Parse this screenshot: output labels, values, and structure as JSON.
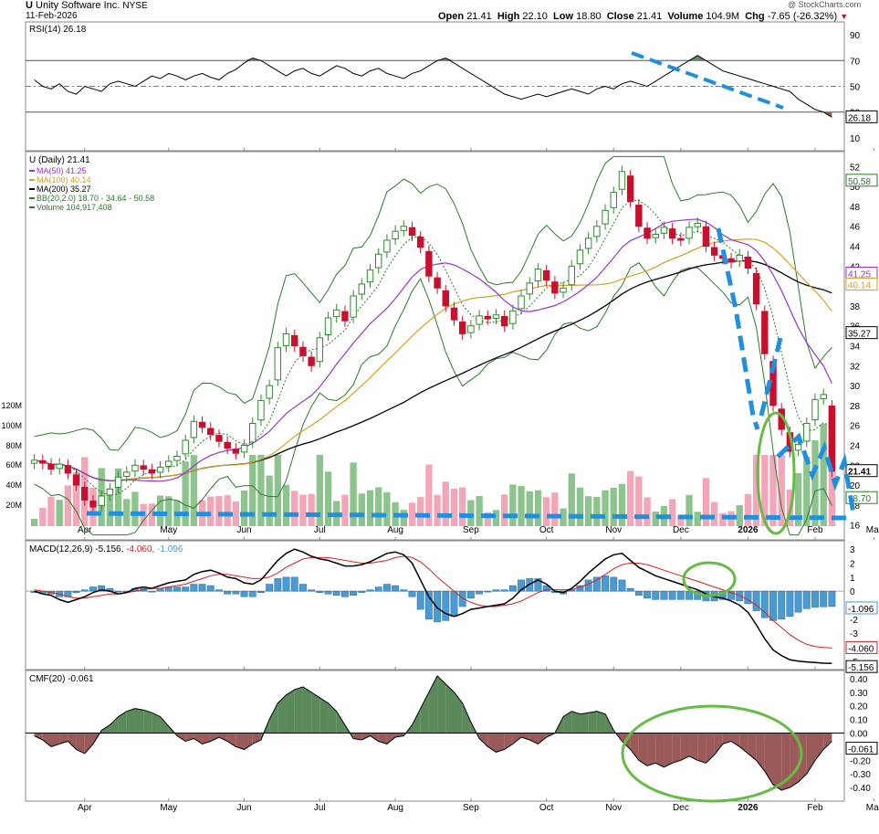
{
  "header": {
    "symbol": "U",
    "company": "Unity Software Inc.",
    "exchange": "NYSE",
    "date": "11-Feb-2026",
    "watermark": "@ StockCharts.com",
    "open_label": "Open",
    "open": "21.41",
    "high_label": "High",
    "high": "22.10",
    "low_label": "Low",
    "low": "18.80",
    "close_label": "Close",
    "close": "21.41",
    "volume_label": "Volume",
    "volume": "104.9M",
    "chg_label": "Chg",
    "chg": "-7.65 (-26.32%)"
  },
  "colors": {
    "up": "#2e8b2e",
    "down": "#c8102e",
    "up_vol": "#8dc48d",
    "down_vol": "#f2a6b8",
    "bb": "#2a7a2a",
    "ma50": "#9933cc",
    "ma100": "#d4a020",
    "ma200": "#000000",
    "annotation_blue": "#1f8fe0",
    "annotation_green": "#66bb44",
    "macd_line": "#000000",
    "signal_line": "#d42020",
    "histogram": "#4a9ad4",
    "cmf_pos": "#5a8a5a",
    "cmf_neg": "#9a5a5a"
  },
  "chart_data": [
    {
      "type": "line",
      "panel": "rsi",
      "title": "RSI(14) 26.18",
      "last_value": "26.18",
      "y_ticks": [
        10,
        30,
        50,
        70,
        90
      ],
      "ylim": [
        0,
        100
      ],
      "levels": [
        30,
        50,
        70
      ],
      "series": [
        {
          "values": [
            55,
            50,
            48,
            52,
            46,
            44,
            50,
            48,
            46,
            52,
            54,
            52,
            50,
            54,
            58,
            56,
            60,
            58,
            55,
            58,
            60,
            57,
            55,
            60,
            63,
            68,
            72,
            70,
            66,
            62,
            58,
            62,
            64,
            60,
            58,
            62,
            66,
            64,
            60,
            58,
            62,
            64,
            60,
            58,
            56,
            60,
            62,
            66,
            70,
            72,
            68,
            64,
            60,
            56,
            52,
            48,
            44,
            42,
            40,
            42,
            44,
            42,
            44,
            46,
            48,
            46,
            44,
            48,
            50,
            48,
            52,
            54,
            52,
            50,
            54,
            58,
            62,
            66,
            70,
            74,
            70,
            66,
            62,
            60,
            58,
            56,
            54,
            52,
            50,
            48,
            46,
            40,
            36,
            32,
            30,
            26
          ]
        }
      ]
    },
    {
      "type": "line",
      "panel": "price",
      "title": "U (Daily) 21.41",
      "last_value": "21.41",
      "x_ticks": [
        "Apr",
        "May",
        "Jun",
        "Jul",
        "Aug",
        "Sep",
        "Oct",
        "Nov",
        "Dec",
        "2026",
        "Feb",
        "Mar"
      ],
      "y_ticks": [
        16,
        18,
        20,
        22,
        24,
        26,
        28,
        30,
        32,
        34,
        36,
        38,
        40,
        42,
        44,
        46,
        48,
        50,
        52
      ],
      "ylim": [
        14.5,
        53.5
      ],
      "volume_ticks": [
        "20M",
        "40M",
        "60M",
        "80M",
        "100M",
        "120M"
      ],
      "value_labels": [
        "50.58",
        "41.25",
        "40.14",
        "35.27",
        "21.41",
        "18.70"
      ],
      "legend": [
        {
          "label": "MA(50) 41.25"
        },
        {
          "label": "MA(100) 40.14"
        },
        {
          "label": "MA(200) 35.27"
        },
        {
          "label": "BB(20,2.0) 18.70 - 34.64 - 50.58"
        },
        {
          "label": "Volume 104,917,408"
        }
      ],
      "series": [
        {
          "values": [
            22.5,
            22.2,
            21.6,
            22.1,
            21.2,
            20.0,
            18.5,
            17.8,
            18.9,
            19.6,
            20.8,
            21.3,
            22.0,
            21.6,
            21.2,
            21.8,
            22.4,
            22.9,
            24.5,
            26.4,
            25.8,
            25.1,
            24.4,
            23.7,
            23.2,
            24.0,
            26.2,
            28.5,
            30.0,
            33.8,
            35.2,
            34.0,
            33.0,
            32.0,
            34.8,
            36.8,
            37.6,
            36.5,
            39.0,
            40.2,
            41.6,
            43.2,
            44.6,
            45.5,
            46.0,
            45.1,
            43.9,
            41.0,
            39.8,
            38.0,
            36.6,
            35.2,
            36.0,
            37.0,
            36.7,
            37.1,
            36.0,
            37.5,
            39.0,
            40.3,
            41.7,
            40.6,
            39.3,
            39.8,
            42.0,
            43.6,
            44.8,
            46.0,
            47.6,
            49.4,
            51.5,
            48.5,
            46.0,
            44.8,
            45.2,
            45.9,
            44.8,
            44.6,
            45.9,
            46.3,
            44.0,
            43.1,
            42.8,
            42.4,
            43.1,
            41.8,
            38.2,
            33.2,
            28.0,
            25.6,
            23.4,
            24.1,
            26.2,
            28.6,
            29.1,
            21.41
          ]
        }
      ]
    },
    {
      "type": "line",
      "panel": "macd",
      "title": "MACD(12,26,9) -5.156, -4.060, -1.096",
      "value_labels": [
        "-1.096",
        "-4.060",
        "-5.156"
      ],
      "y_ticks": [
        -5,
        -4,
        -3,
        -2,
        -1,
        0,
        1,
        2,
        3
      ],
      "ylim": [
        -5.6,
        3.6
      ],
      "series": [
        {
          "values": [
            0.0,
            -0.2,
            -0.3,
            -0.6,
            -0.8,
            -0.6,
            -0.4,
            -0.1,
            0.1,
            0.0,
            -0.2,
            -0.1,
            0.2,
            0.3,
            0.2,
            0.4,
            0.6,
            0.7,
            0.8,
            1.2,
            1.4,
            1.5,
            1.3,
            1.0,
            0.9,
            0.6,
            0.5,
            0.8,
            1.5,
            2.2,
            2.7,
            3.0,
            2.8,
            2.5,
            2.3,
            2.2,
            2.0,
            1.8,
            1.8,
            1.9,
            2.1,
            2.4,
            2.7,
            2.8,
            2.6,
            2.0,
            0.8,
            -0.4,
            -1.2,
            -1.6,
            -1.8,
            -1.6,
            -1.3,
            -1.2,
            -1.1,
            -1.0,
            -0.9,
            -0.5,
            0.1,
            0.5,
            0.8,
            0.5,
            0.0,
            -0.1,
            0.2,
            0.7,
            1.3,
            1.8,
            2.3,
            2.6,
            2.7,
            2.2,
            1.7,
            1.4,
            1.1,
            0.9,
            0.7,
            0.5,
            0.3,
            0.1,
            -0.2,
            -0.4,
            -0.5,
            -0.7,
            -1.0,
            -1.5,
            -2.4,
            -3.4,
            -4.2,
            -4.6,
            -4.9,
            -5.0,
            -5.05,
            -5.1,
            -5.14,
            -5.156
          ]
        },
        {
          "values": [
            0.1,
            0.0,
            -0.1,
            -0.2,
            -0.4,
            -0.5,
            -0.5,
            -0.4,
            -0.3,
            -0.2,
            -0.2,
            -0.1,
            0.0,
            0.1,
            0.2,
            0.2,
            0.3,
            0.4,
            0.5,
            0.7,
            0.9,
            1.1,
            1.2,
            1.2,
            1.1,
            1.0,
            0.9,
            0.9,
            1.0,
            1.3,
            1.7,
            2.0,
            2.3,
            2.4,
            2.4,
            2.4,
            2.3,
            2.2,
            2.1,
            2.0,
            2.0,
            2.1,
            2.2,
            2.4,
            2.5,
            2.4,
            2.1,
            1.6,
            1.0,
            0.5,
            0.0,
            -0.5,
            -0.8,
            -1.0,
            -1.1,
            -1.1,
            -1.0,
            -0.9,
            -0.7,
            -0.4,
            -0.1,
            0.1,
            0.1,
            0.1,
            0.1,
            0.3,
            0.5,
            0.8,
            1.2,
            1.6,
            1.9,
            2.0,
            2.0,
            1.9,
            1.7,
            1.5,
            1.3,
            1.1,
            0.9,
            0.7,
            0.5,
            0.3,
            0.1,
            -0.1,
            -0.3,
            -0.6,
            -1.0,
            -1.5,
            -2.1,
            -2.6,
            -3.1,
            -3.5,
            -3.8,
            -3.95,
            -4.02,
            -4.06
          ]
        }
      ]
    },
    {
      "type": "area",
      "panel": "cmf",
      "title": "CMF(20) -0.061",
      "last_value": "-0.061",
      "y_ticks": [
        -0.4,
        -0.3,
        -0.2,
        -0.1,
        0.0,
        0.1,
        0.2,
        0.3,
        0.4
      ],
      "y_tick_labels": [
        "-0.40",
        "-0.30",
        "-0.20",
        "-0.10",
        "0.00",
        "0.10",
        "0.20",
        "0.30",
        "0.40"
      ],
      "ylim": [
        -0.5,
        0.46
      ],
      "series": [
        {
          "values": [
            -0.02,
            -0.05,
            -0.1,
            -0.08,
            -0.06,
            -0.12,
            -0.15,
            -0.08,
            0.02,
            0.06,
            0.12,
            0.16,
            0.18,
            0.17,
            0.15,
            0.12,
            0.05,
            -0.02,
            -0.06,
            -0.04,
            -0.08,
            -0.06,
            -0.03,
            -0.06,
            -0.1,
            -0.12,
            -0.08,
            -0.05,
            0.1,
            0.22,
            0.28,
            0.32,
            0.34,
            0.3,
            0.26,
            0.22,
            0.16,
            0.06,
            -0.04,
            -0.05,
            -0.02,
            -0.06,
            -0.08,
            -0.03,
            -0.02,
            0.06,
            0.18,
            0.3,
            0.42,
            0.36,
            0.3,
            0.22,
            0.08,
            -0.04,
            -0.1,
            -0.14,
            -0.12,
            -0.08,
            -0.03,
            -0.05,
            -0.08,
            -0.03,
            0.0,
            0.12,
            0.16,
            0.14,
            0.15,
            0.16,
            0.14,
            0.02,
            -0.06,
            -0.12,
            -0.2,
            -0.24,
            -0.22,
            -0.25,
            -0.22,
            -0.2,
            -0.17,
            -0.2,
            -0.22,
            -0.16,
            -0.08,
            -0.06,
            -0.1,
            -0.15,
            -0.2,
            -0.28,
            -0.38,
            -0.42,
            -0.4,
            -0.36,
            -0.3,
            -0.2,
            -0.12,
            -0.061
          ]
        }
      ]
    }
  ]
}
